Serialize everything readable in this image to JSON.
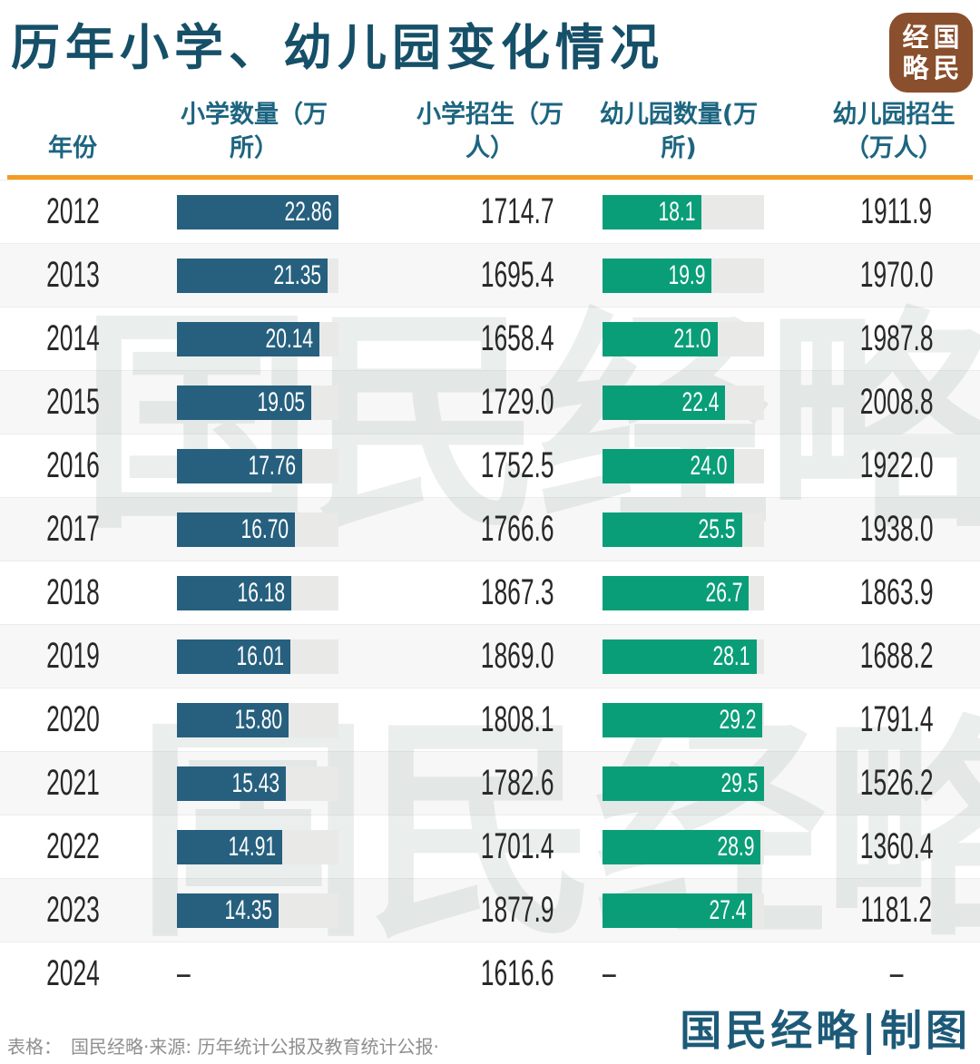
{
  "title": "历年小学、幼儿园变化情况",
  "logo": {
    "grid": [
      "经",
      "国",
      "略",
      "民"
    ]
  },
  "watermark": {
    "text": "国民经略"
  },
  "header": {
    "columns": [
      {
        "id": "year",
        "lines": [
          "年份"
        ]
      },
      {
        "id": "primary_count",
        "lines": [
          "小学数量（万",
          "所）"
        ]
      },
      {
        "id": "primary_enroll",
        "lines": [
          "小学招生（万",
          "人）"
        ]
      },
      {
        "id": "kinder_count",
        "lines": [
          "幼儿园数量(万",
          "所)"
        ]
      },
      {
        "id": "kinder_enroll",
        "lines": [
          "幼儿园招生",
          "（万人）"
        ]
      }
    ]
  },
  "chart_data": {
    "type": "table",
    "title": "历年小学、幼儿园变化情况",
    "columns": [
      "年份",
      "小学数量（万所）",
      "小学招生（万人）",
      "幼儿园数量(万所)",
      "幼儿园招生（万人）"
    ],
    "bar_columns": {
      "primary_schools": {
        "max": 22.86,
        "color": "#26607e"
      },
      "kindergartens": {
        "max": 29.5,
        "color": "#0a9e78"
      }
    },
    "null_display": "–",
    "rows": [
      {
        "year": "2012",
        "primary_schools": "22.86",
        "primary_enrollment": "1714.7",
        "kindergartens": "18.1",
        "kindergarten_enrollment": "1911.9"
      },
      {
        "year": "2013",
        "primary_schools": "21.35",
        "primary_enrollment": "1695.4",
        "kindergartens": "19.9",
        "kindergarten_enrollment": "1970.0"
      },
      {
        "year": "2014",
        "primary_schools": "20.14",
        "primary_enrollment": "1658.4",
        "kindergartens": "21.0",
        "kindergarten_enrollment": "1987.8"
      },
      {
        "year": "2015",
        "primary_schools": "19.05",
        "primary_enrollment": "1729.0",
        "kindergartens": "22.4",
        "kindergarten_enrollment": "2008.8"
      },
      {
        "year": "2016",
        "primary_schools": "17.76",
        "primary_enrollment": "1752.5",
        "kindergartens": "24.0",
        "kindergarten_enrollment": "1922.0"
      },
      {
        "year": "2017",
        "primary_schools": "16.70",
        "primary_enrollment": "1766.6",
        "kindergartens": "25.5",
        "kindergarten_enrollment": "1938.0"
      },
      {
        "year": "2018",
        "primary_schools": "16.18",
        "primary_enrollment": "1867.3",
        "kindergartens": "26.7",
        "kindergarten_enrollment": "1863.9"
      },
      {
        "year": "2019",
        "primary_schools": "16.01",
        "primary_enrollment": "1869.0",
        "kindergartens": "28.1",
        "kindergarten_enrollment": "1688.2"
      },
      {
        "year": "2020",
        "primary_schools": "15.80",
        "primary_enrollment": "1808.1",
        "kindergartens": "29.2",
        "kindergarten_enrollment": "1791.4"
      },
      {
        "year": "2021",
        "primary_schools": "15.43",
        "primary_enrollment": "1782.6",
        "kindergartens": "29.5",
        "kindergarten_enrollment": "1526.2"
      },
      {
        "year": "2022",
        "primary_schools": "14.91",
        "primary_enrollment": "1701.4",
        "kindergartens": "28.9",
        "kindergarten_enrollment": "1360.4"
      },
      {
        "year": "2023",
        "primary_schools": "14.35",
        "primary_enrollment": "1877.9",
        "kindergartens": "27.4",
        "kindergarten_enrollment": "1181.2"
      },
      {
        "year": "2024",
        "primary_schools": null,
        "primary_enrollment": "1616.6",
        "kindergartens": null,
        "kindergarten_enrollment": null
      }
    ]
  },
  "colors": {
    "title": "#164f68",
    "header": "#1d6580",
    "orange": "#f59b20",
    "blue": "#26607e",
    "green": "#0a9e78",
    "track": "#e9e9e8",
    "row_alt": "#f7f7f7",
    "brown": "#8a4f2d",
    "credit": "#1d5a78",
    "text": "#282828",
    "muted": "#8f8f8f"
  },
  "footer": {
    "source": "表格：　国民经略·来源: 历年统计公报及教育统计公报·",
    "credit": "国民经略|制图"
  }
}
